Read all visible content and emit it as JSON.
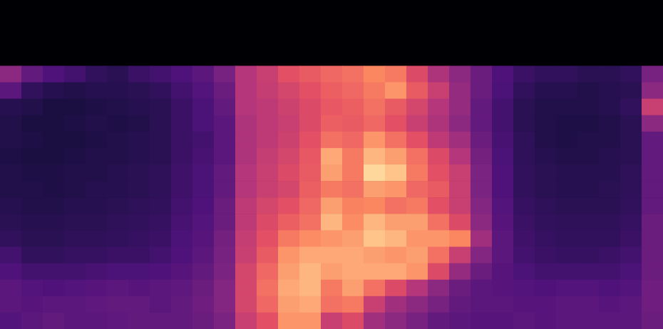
{
  "chart_data": {
    "type": "heatmap",
    "xlim": [
      0,
      31
    ],
    "ylim": [
      0,
      20
    ],
    "zlim": [
      0,
      100
    ],
    "tick_labels": false,
    "cells": [
      [
        0,
        0,
        0,
        0,
        0,
        0,
        0,
        0,
        0,
        0,
        0,
        0,
        0,
        0,
        0,
        0,
        0,
        0,
        0,
        0,
        0,
        0,
        0,
        0,
        0,
        0,
        0,
        0,
        0,
        0,
        0
      ],
      [
        0,
        0,
        0,
        0,
        0,
        0,
        0,
        0,
        0,
        0,
        0,
        0,
        0,
        0,
        0,
        0,
        0,
        0,
        0,
        0,
        0,
        0,
        0,
        0,
        0,
        0,
        0,
        0,
        0,
        0,
        0
      ],
      [
        0,
        0,
        0,
        0,
        0,
        0,
        0,
        0,
        0,
        0,
        0,
        0,
        0,
        0,
        0,
        0,
        0,
        0,
        0,
        0,
        0,
        0,
        0,
        0,
        0,
        0,
        0,
        0,
        0,
        0,
        0
      ],
      [
        0,
        0,
        0,
        0,
        0,
        0,
        0,
        0,
        0,
        0,
        0,
        0,
        0,
        0,
        0,
        0,
        0,
        0,
        0,
        0,
        0,
        0,
        0,
        0,
        0,
        0,
        0,
        0,
        0,
        0,
        0
      ],
      [
        40,
        30,
        25,
        22,
        18,
        16,
        20,
        22,
        25,
        28,
        35,
        50,
        55,
        62,
        65,
        68,
        70,
        75,
        72,
        60,
        48,
        40,
        32,
        25,
        20,
        18,
        18,
        16,
        16,
        18,
        35
      ],
      [
        28,
        18,
        15,
        14,
        15,
        15,
        16,
        18,
        22,
        26,
        32,
        50,
        54,
        58,
        62,
        66,
        68,
        72,
        78,
        65,
        55,
        42,
        32,
        24,
        18,
        15,
        15,
        14,
        15,
        16,
        40
      ],
      [
        15,
        14,
        12,
        12,
        13,
        14,
        15,
        16,
        20,
        24,
        30,
        50,
        52,
        56,
        60,
        64,
        66,
        70,
        65,
        58,
        50,
        42,
        30,
        22,
        16,
        14,
        14,
        14,
        15,
        18,
        55
      ],
      [
        14,
        12,
        12,
        13,
        14,
        13,
        14,
        16,
        20,
        24,
        28,
        48,
        52,
        55,
        60,
        66,
        65,
        68,
        62,
        55,
        48,
        40,
        30,
        22,
        16,
        14,
        13,
        13,
        14,
        16,
        40
      ],
      [
        14,
        13,
        12,
        12,
        13,
        14,
        15,
        16,
        20,
        22,
        28,
        48,
        52,
        56,
        62,
        70,
        68,
        78,
        70,
        62,
        52,
        45,
        32,
        23,
        17,
        14,
        13,
        14,
        14,
        16,
        30
      ],
      [
        13,
        12,
        12,
        13,
        14,
        14,
        15,
        16,
        20,
        23,
        28,
        48,
        54,
        58,
        64,
        82,
        72,
        85,
        80,
        70,
        60,
        50,
        34,
        24,
        17,
        15,
        14,
        14,
        15,
        16,
        30
      ],
      [
        14,
        13,
        13,
        14,
        14,
        15,
        16,
        17,
        21,
        24,
        30,
        50,
        55,
        60,
        65,
        80,
        72,
        92,
        88,
        72,
        62,
        55,
        36,
        25,
        18,
        16,
        15,
        15,
        15,
        17,
        30
      ],
      [
        14,
        14,
        13,
        14,
        15,
        15,
        16,
        17,
        21,
        24,
        30,
        50,
        55,
        58,
        66,
        72,
        70,
        80,
        78,
        68,
        65,
        55,
        36,
        25,
        18,
        16,
        15,
        15,
        16,
        17,
        30
      ],
      [
        15,
        14,
        14,
        15,
        15,
        16,
        17,
        18,
        22,
        25,
        32,
        52,
        58,
        62,
        68,
        80,
        74,
        75,
        70,
        72,
        62,
        55,
        38,
        26,
        19,
        17,
        16,
        16,
        16,
        18,
        30
      ],
      [
        16,
        15,
        15,
        16,
        16,
        17,
        18,
        19,
        23,
        26,
        32,
        52,
        60,
        66,
        70,
        85,
        76,
        85,
        80,
        80,
        70,
        60,
        40,
        27,
        20,
        18,
        17,
        17,
        17,
        19,
        32
      ],
      [
        18,
        16,
        16,
        17,
        17,
        18,
        19,
        20,
        24,
        27,
        34,
        54,
        62,
        72,
        76,
        78,
        80,
        88,
        85,
        78,
        78,
        75,
        45,
        28,
        21,
        19,
        18,
        18,
        18,
        20,
        32
      ],
      [
        22,
        18,
        18,
        19,
        19,
        20,
        20,
        22,
        25,
        28,
        35,
        55,
        65,
        78,
        82,
        82,
        82,
        80,
        78,
        80,
        70,
        55,
        38,
        28,
        22,
        20,
        19,
        19,
        20,
        22,
        32
      ],
      [
        25,
        22,
        22,
        22,
        23,
        24,
        24,
        25,
        27,
        30,
        36,
        58,
        68,
        80,
        85,
        80,
        82,
        82,
        82,
        78,
        60,
        42,
        32,
        27,
        24,
        22,
        22,
        22,
        22,
        24,
        32
      ],
      [
        28,
        26,
        25,
        26,
        27,
        28,
        27,
        28,
        29,
        32,
        38,
        58,
        70,
        82,
        85,
        72,
        80,
        70,
        60,
        50,
        40,
        32,
        28,
        27,
        26,
        25,
        26,
        26,
        25,
        26,
        33
      ],
      [
        28,
        27,
        28,
        28,
        29,
        30,
        30,
        28,
        30,
        33,
        38,
        58,
        68,
        80,
        82,
        70,
        72,
        55,
        45,
        40,
        35,
        30,
        28,
        28,
        27,
        27,
        28,
        28,
        27,
        28,
        33
      ],
      [
        26,
        28,
        30,
        28,
        28,
        29,
        30,
        30,
        30,
        32,
        36,
        55,
        62,
        78,
        78,
        55,
        60,
        45,
        40,
        35,
        30,
        28,
        27,
        27,
        28,
        27,
        28,
        28,
        28,
        28,
        32
      ]
    ]
  }
}
